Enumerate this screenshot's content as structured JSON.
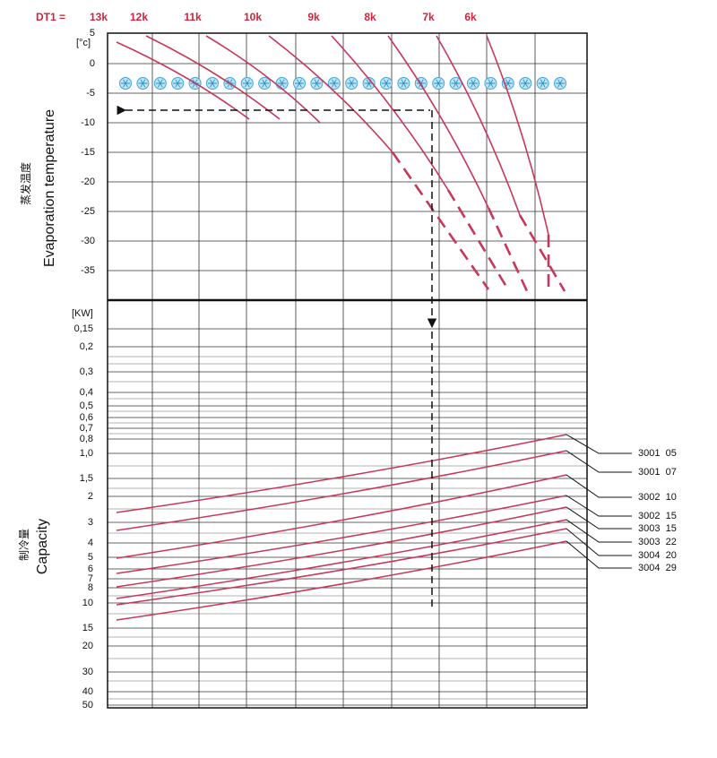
{
  "header": {
    "dt_prefix": "DT1 =",
    "dt_labels": [
      "13k",
      "12k",
      "11k",
      "10k",
      "9k",
      "8k",
      "7k",
      "6k"
    ]
  },
  "top_axis": {
    "unit": "[°c]",
    "ticks": [
      "5",
      "0",
      "-5",
      "-10",
      "-15",
      "-20",
      "-25",
      "-30",
      "-35"
    ],
    "title": "Evaporation temperature",
    "title_cn": "蒸发温度"
  },
  "bottom_axis": {
    "unit": "[KW]",
    "ticks": [
      "0,15",
      "0,2",
      "0,3",
      "0,4",
      "0,5",
      "0,6",
      "0,7",
      "0,8",
      "1,0",
      "1,5",
      "2",
      "3",
      "4",
      "5",
      "6",
      "7",
      "8",
      "10",
      "15",
      "20",
      "30",
      "40",
      "50"
    ],
    "title": "Capacity",
    "title_cn": "制冷量"
  },
  "models": [
    "3001  05",
    "3001  07",
    "3002  10",
    "3002  15",
    "3003  15",
    "3003  22",
    "3004  20",
    "3004  29"
  ]
}
